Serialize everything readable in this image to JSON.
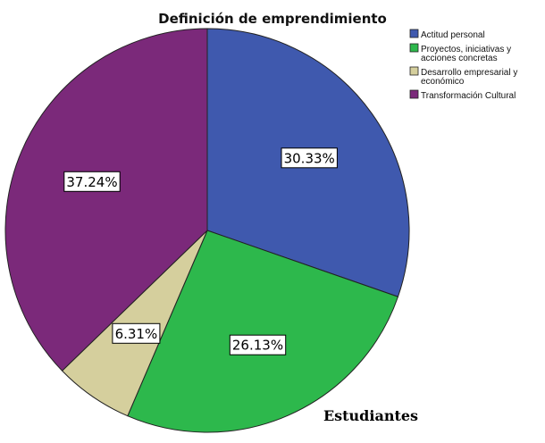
{
  "chart_data": {
    "type": "pie",
    "title": "Definición de emprendimiento",
    "footer": "Estudiantes",
    "slices": [
      {
        "legend_lines": [
          "Actitud personal"
        ],
        "value": 30.33,
        "label": "30.33%",
        "color": "#3f59ae"
      },
      {
        "legend_lines": [
          "Proyectos, iniciativas y",
          "acciones concretas"
        ],
        "value": 26.13,
        "label": "26.13%",
        "color": "#2db84c"
      },
      {
        "legend_lines": [
          "Desarrollo empresarial y",
          "económico"
        ],
        "value": 6.31,
        "label": "6.31%",
        "color": "#d5cf9d"
      },
      {
        "legend_lines": [
          "Transformación Cultural"
        ],
        "value": 37.24,
        "label": "37.24%",
        "color": "#7b297a"
      }
    ],
    "start_angle": "12 o'clock",
    "direction": "clockwise",
    "legend_position": "top-right"
  }
}
